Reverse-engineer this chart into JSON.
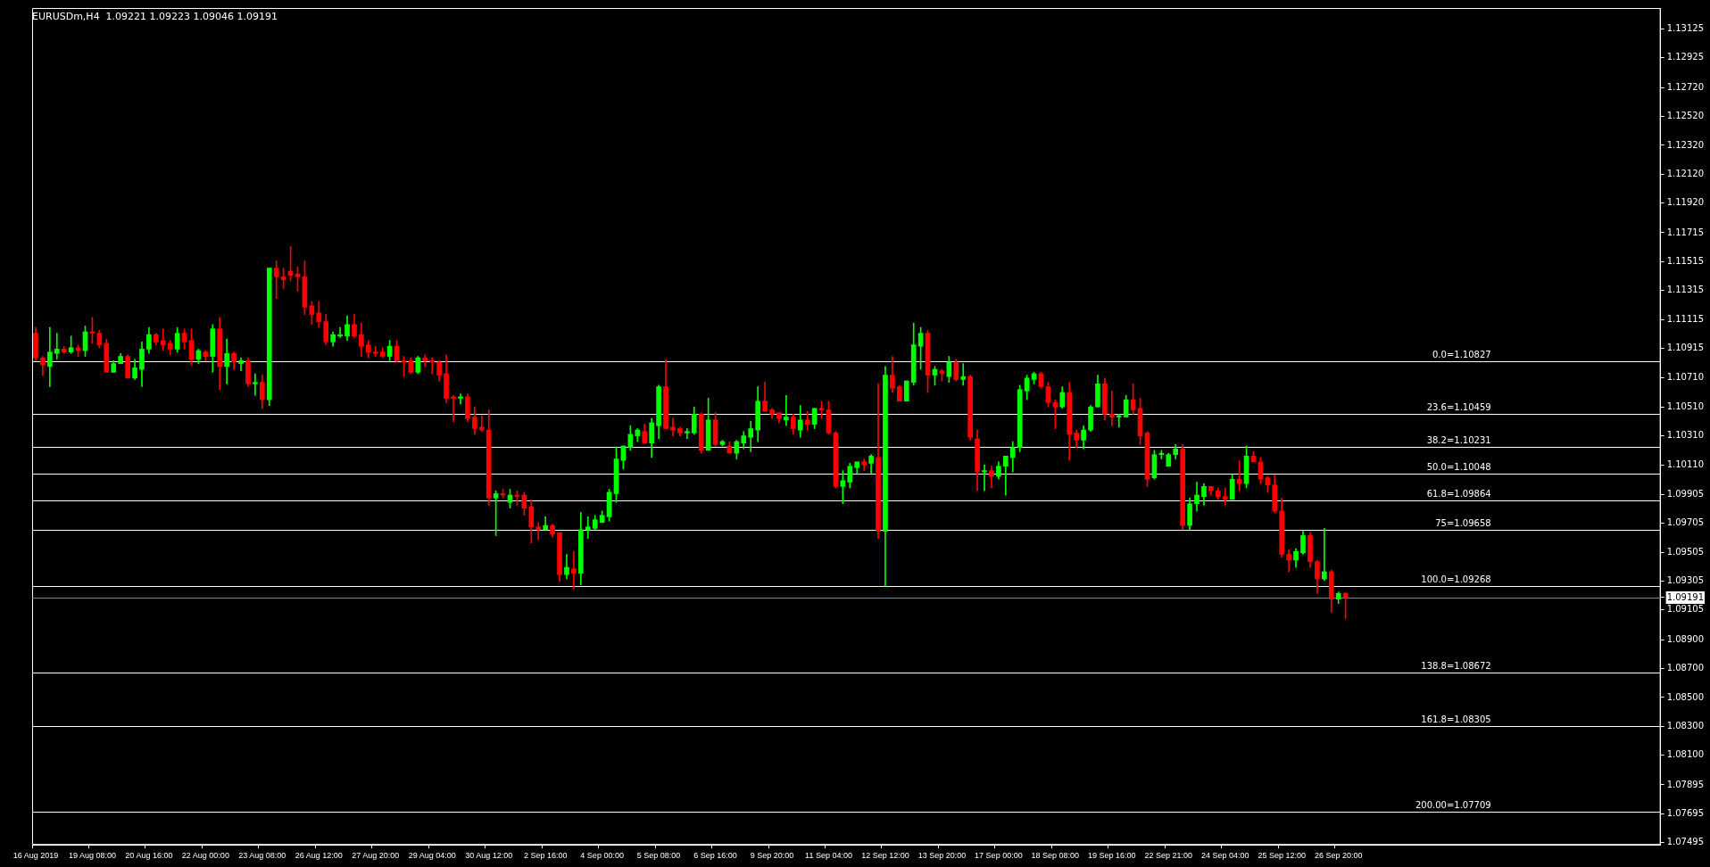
{
  "chart_data": {
    "type": "candlestick",
    "title": "EURUSDm,H4  1.09221 1.09223 1.09046 1.09191",
    "categories": [
      "16 Aug 2019",
      null,
      null,
      null,
      null,
      null,
      null,
      null,
      "19 Aug 08:00",
      null,
      null,
      null,
      null,
      null,
      null,
      null,
      "20 Aug 16:00",
      null,
      null,
      null,
      null,
      null,
      null,
      null,
      "22 Aug 00:00",
      null,
      null,
      null,
      null,
      null,
      null,
      null,
      "23 Aug 08:00",
      null,
      null,
      null,
      null,
      null,
      null,
      null,
      "26 Aug 12:00",
      null,
      null,
      null,
      null,
      null,
      null,
      null,
      "27 Aug 20:00",
      null,
      null,
      null,
      null,
      null,
      null,
      null,
      "29 Aug 04:00",
      null,
      null,
      null,
      null,
      null,
      null,
      null,
      "30 Aug 12:00",
      null,
      null,
      null,
      null,
      null,
      null,
      null,
      "2 Sep 16:00",
      null,
      null,
      null,
      null,
      null,
      null,
      null,
      "4 Sep 00:00",
      null,
      null,
      null,
      null,
      null,
      null,
      null,
      "5 Sep 08:00",
      null,
      null,
      null,
      null,
      null,
      null,
      null,
      "6 Sep 16:00",
      null,
      null,
      null,
      null,
      null,
      null,
      null,
      "9 Sep 20:00",
      null,
      null,
      null,
      null,
      null,
      null,
      null,
      "11 Sep 04:00",
      null,
      null,
      null,
      null,
      null,
      null,
      null,
      "12 Sep 12:00",
      null,
      null,
      null,
      null,
      null,
      null,
      null,
      "13 Sep 20:00",
      null,
      null,
      null,
      null,
      null,
      null,
      null,
      "17 Sep 00:00",
      null,
      null,
      null,
      null,
      null,
      null,
      null,
      "18 Sep 08:00",
      null,
      null,
      null,
      null,
      null,
      null,
      null,
      "19 Sep 16:00",
      null,
      null,
      null,
      null,
      null,
      null,
      null,
      "22 Sep 21:00",
      null,
      null,
      null,
      null,
      null,
      null,
      null,
      "24 Sep 04:00",
      null,
      null,
      null,
      null,
      null,
      null,
      null,
      "25 Sep 12:00",
      null,
      null,
      null,
      null,
      null,
      null,
      null,
      "26 Sep 20:00",
      null,
      null,
      null,
      null,
      null,
      null,
      null,
      null,
      null,
      null,
      null,
      null,
      null,
      null,
      null,
      null,
      null,
      null,
      null,
      null,
      null,
      null,
      null,
      null,
      null,
      null,
      null,
      null,
      null,
      null,
      null,
      null,
      null,
      null,
      null,
      null,
      null,
      null,
      null,
      null,
      null,
      null,
      null,
      null,
      null
    ],
    "ohlc": [
      [
        1.1102,
        1.1106,
        1.1083,
        1.1085
      ],
      [
        1.1085,
        1.1086,
        1.1073,
        1.108
      ],
      [
        1.1079,
        1.1106,
        1.1065,
        1.1089
      ],
      [
        1.1088,
        1.1102,
        1.1084,
        1.1091
      ],
      [
        1.1091,
        1.1093,
        1.1088,
        1.1089
      ],
      [
        1.1089,
        1.11,
        1.1088,
        1.1092
      ],
      [
        1.1092,
        1.1094,
        1.1086,
        1.109
      ],
      [
        1.109,
        1.1107,
        1.1086,
        1.1103
      ],
      [
        1.1103,
        1.1113,
        1.1095,
        1.1102
      ],
      [
        1.1102,
        1.1104,
        1.1092,
        1.1094
      ],
      [
        1.1095,
        1.1098,
        1.1075,
        1.1075
      ],
      [
        1.1075,
        1.1083,
        1.1075,
        1.1081
      ],
      [
        1.1081,
        1.1088,
        1.1081,
        1.1086
      ],
      [
        1.1086,
        1.1087,
        1.1071,
        1.1071
      ],
      [
        1.1071,
        1.1084,
        1.107,
        1.1078
      ],
      [
        1.1077,
        1.1096,
        1.1065,
        1.1091
      ],
      [
        1.1091,
        1.1106,
        1.1088,
        1.1101
      ],
      [
        1.1101,
        1.1102,
        1.1094,
        1.1096
      ],
      [
        1.1097,
        1.1105,
        1.109,
        1.1094
      ],
      [
        1.1095,
        1.1097,
        1.1087,
        1.1091
      ],
      [
        1.1091,
        1.1106,
        1.1089,
        1.1102
      ],
      [
        1.1102,
        1.1105,
        1.1091,
        1.1096
      ],
      [
        1.1097,
        1.1105,
        1.108,
        1.1084
      ],
      [
        1.1084,
        1.1091,
        1.1081,
        1.109
      ],
      [
        1.1089,
        1.109,
        1.1083,
        1.1086
      ],
      [
        1.1086,
        1.1108,
        1.1075,
        1.1105
      ],
      [
        1.1105,
        1.1113,
        1.1063,
        1.1079
      ],
      [
        1.1079,
        1.1098,
        1.1067,
        1.1088
      ],
      [
        1.1088,
        1.1089,
        1.1077,
        1.1082
      ],
      [
        1.1081,
        1.1085,
        1.1076,
        1.1083
      ],
      [
        1.1083,
        1.1085,
        1.1065,
        1.1067
      ],
      [
        1.1067,
        1.1074,
        1.1059,
        1.1068
      ],
      [
        1.1068,
        1.1073,
        1.105,
        1.1056
      ],
      [
        1.1056,
        1.1147,
        1.1052,
        1.1147
      ],
      [
        1.1147,
        1.1152,
        1.1126,
        1.1141
      ],
      [
        1.1141,
        1.1147,
        1.1133,
        1.1139
      ],
      [
        1.1145,
        1.1162,
        1.1138,
        1.1142
      ],
      [
        1.1143,
        1.1148,
        1.1131,
        1.1141
      ],
      [
        1.1141,
        1.1152,
        1.1115,
        1.112
      ],
      [
        1.1121,
        1.1124,
        1.1108,
        1.1115
      ],
      [
        1.1116,
        1.1124,
        1.1106,
        1.111
      ],
      [
        1.111,
        1.1115,
        1.1094,
        1.1096
      ],
      [
        1.1096,
        1.1103,
        1.1093,
        1.1101
      ],
      [
        1.11,
        1.1106,
        1.1099,
        1.1101
      ],
      [
        1.11,
        1.1114,
        1.1097,
        1.1108
      ],
      [
        1.1108,
        1.1115,
        1.1099,
        1.11
      ],
      [
        1.1101,
        1.1109,
        1.1086,
        1.1093
      ],
      [
        1.1094,
        1.1097,
        1.1085,
        1.1089
      ],
      [
        1.1089,
        1.1093,
        1.1086,
        1.1088
      ],
      [
        1.1089,
        1.1092,
        1.1085,
        1.1086
      ],
      [
        1.1086,
        1.1097,
        1.1083,
        1.1093
      ],
      [
        1.1093,
        1.1097,
        1.1082,
        1.1083
      ],
      [
        1.1083,
        1.1086,
        1.1072,
        1.1082
      ],
      [
        1.1083,
        1.1085,
        1.1074,
        1.1075
      ],
      [
        1.1075,
        1.1086,
        1.1074,
        1.1085
      ],
      [
        1.1085,
        1.1087,
        1.1079,
        1.1083
      ],
      [
        1.1083,
        1.1085,
        1.1074,
        1.1082
      ],
      [
        1.1082,
        1.1083,
        1.1069,
        1.1073
      ],
      [
        1.1074,
        1.1087,
        1.1054,
        1.1057
      ],
      [
        1.1058,
        1.1059,
        1.1041,
        1.1057
      ],
      [
        1.1057,
        1.106,
        1.1053,
        1.1058
      ],
      [
        1.1058,
        1.106,
        1.1041,
        1.1043
      ],
      [
        1.1044,
        1.1051,
        1.1032,
        1.1036
      ],
      [
        1.1037,
        1.1045,
        1.1034,
        1.1035
      ],
      [
        1.1035,
        1.1049,
        1.0983,
        1.0988
      ],
      [
        1.0988,
        1.0993,
        1.0962,
        1.0991
      ],
      [
        1.0991,
        1.0994,
        1.0988,
        1.099
      ],
      [
        1.0985,
        1.0994,
        1.0981,
        1.099
      ],
      [
        1.099,
        1.0993,
        1.0983,
        1.0989
      ],
      [
        1.099,
        1.0992,
        1.0976,
        1.0981
      ],
      [
        1.0982,
        1.0987,
        1.0957,
        1.0968
      ],
      [
        1.0968,
        1.0971,
        1.0959,
        1.0966
      ],
      [
        1.0966,
        1.0975,
        1.0966,
        1.0969
      ],
      [
        1.0969,
        1.097,
        1.0961,
        1.0963
      ],
      [
        1.0964,
        1.0964,
        1.093,
        1.0935
      ],
      [
        1.0935,
        1.0949,
        1.0932,
        1.094
      ],
      [
        1.0939,
        1.0951,
        1.0925,
        1.0936
      ],
      [
        1.0936,
        1.0978,
        1.0928,
        1.0966
      ],
      [
        1.0966,
        1.0975,
        1.096,
        1.0968
      ],
      [
        1.0967,
        1.0976,
        1.0966,
        1.0973
      ],
      [
        1.0971,
        1.0979,
        1.0971,
        1.0976
      ],
      [
        1.0975,
        1.0994,
        1.0972,
        1.0992
      ],
      [
        1.0991,
        1.1023,
        1.0985,
        1.1015
      ],
      [
        1.1014,
        1.1024,
        1.1008,
        1.1024
      ],
      [
        1.1023,
        1.1038,
        1.1021,
        1.1032
      ],
      [
        1.1031,
        1.1036,
        1.1027,
        1.1035
      ],
      [
        1.1034,
        1.1039,
        1.1026,
        1.1026
      ],
      [
        1.1026,
        1.1043,
        1.1016,
        1.104
      ],
      [
        1.1038,
        1.1066,
        1.1029,
        1.1065
      ],
      [
        1.1065,
        1.1084,
        1.1036,
        1.1036
      ],
      [
        1.1037,
        1.1043,
        1.1031,
        1.1035
      ],
      [
        1.1036,
        1.1037,
        1.1031,
        1.1033
      ],
      [
        1.1033,
        1.1036,
        1.1029,
        1.1034
      ],
      [
        1.1033,
        1.1051,
        1.1032,
        1.1046
      ],
      [
        1.1046,
        1.1047,
        1.1019,
        1.1021
      ],
      [
        1.1021,
        1.1057,
        1.1021,
        1.1042
      ],
      [
        1.1042,
        1.1047,
        1.1024,
        1.1025
      ],
      [
        1.1025,
        1.1028,
        1.1024,
        1.1027
      ],
      [
        1.1024,
        1.1027,
        1.1019,
        1.1019
      ],
      [
        1.1019,
        1.1028,
        1.1015,
        1.1027
      ],
      [
        1.1026,
        1.1034,
        1.1022,
        1.1031
      ],
      [
        1.103,
        1.1041,
        1.102,
        1.1036
      ],
      [
        1.1035,
        1.1065,
        1.1027,
        1.1055
      ],
      [
        1.1055,
        1.1068,
        1.1048,
        1.1048
      ],
      [
        1.1049,
        1.105,
        1.1043,
        1.1046
      ],
      [
        1.1047,
        1.1047,
        1.104,
        1.1043
      ],
      [
        1.1042,
        1.1059,
        1.1038,
        1.1044
      ],
      [
        1.1044,
        1.1046,
        1.1032,
        1.1036
      ],
      [
        1.1035,
        1.1052,
        1.103,
        1.1042
      ],
      [
        1.1042,
        1.1048,
        1.1035,
        1.1039
      ],
      [
        1.1039,
        1.105,
        1.1036,
        1.105
      ],
      [
        1.105,
        1.1055,
        1.1043,
        1.1049
      ],
      [
        1.1049,
        1.1055,
        1.1032,
        1.1033
      ],
      [
        1.1033,
        1.1034,
        1.0995,
        1.0996
      ],
      [
        1.0996,
        1.1007,
        1.0984,
        1.1
      ],
      [
        1.0999,
        1.1012,
        1.0995,
        1.101
      ],
      [
        1.1009,
        1.1013,
        1.1005,
        1.1013
      ],
      [
        1.1013,
        1.1015,
        1.1007,
        1.1011
      ],
      [
        1.1012,
        1.1018,
        1.1005,
        1.1017
      ],
      [
        1.1016,
        1.1067,
        1.096,
        1.0965
      ],
      [
        1.0965,
        1.1079,
        1.09268,
        1.1073
      ],
      [
        1.1073,
        1.1086,
        1.1061,
        1.1064
      ],
      [
        1.1065,
        1.1066,
        1.1055,
        1.1055
      ],
      [
        1.1055,
        1.1069,
        1.1055,
        1.1069
      ],
      [
        1.1068,
        1.1109,
        1.1066,
        1.1094
      ],
      [
        1.1093,
        1.1106,
        1.1077,
        1.1102
      ],
      [
        1.1102,
        1.1104,
        1.1061,
        1.1073
      ],
      [
        1.1073,
        1.1079,
        1.1066,
        1.1077
      ],
      [
        1.1076,
        1.1077,
        1.1069,
        1.1074
      ],
      [
        1.1072,
        1.1086,
        1.1068,
        1.1082
      ],
      [
        1.1082,
        1.1084,
        1.1069,
        1.107
      ],
      [
        1.107,
        1.1081,
        1.1066,
        1.1072
      ],
      [
        1.1072,
        1.1073,
        1.1028,
        1.103
      ],
      [
        1.1029,
        1.1035,
        1.0993,
        1.1006
      ],
      [
        1.1006,
        1.1011,
        1.0993,
        1.1007
      ],
      [
        1.1007,
        1.101,
        1.0995,
        1.1003
      ],
      [
        1.1003,
        1.1013,
        1.1001,
        1.101
      ],
      [
        1.101,
        1.1017,
        1.099,
        1.1017
      ],
      [
        1.1016,
        1.1027,
        1.1006,
        1.1023
      ],
      [
        1.1023,
        1.1066,
        1.102,
        1.1063
      ],
      [
        1.1062,
        1.1073,
        1.1056,
        1.1071
      ],
      [
        1.107,
        1.1075,
        1.1067,
        1.1074
      ],
      [
        1.1074,
        1.1075,
        1.1064,
        1.1065
      ],
      [
        1.1065,
        1.1068,
        1.1051,
        1.1054
      ],
      [
        1.1054,
        1.1056,
        1.1036,
        1.1051
      ],
      [
        1.1051,
        1.1065,
        1.105,
        1.1061
      ],
      [
        1.1061,
        1.1068,
        1.1014,
        1.1032
      ],
      [
        1.1033,
        1.1035,
        1.1023,
        1.1028
      ],
      [
        1.1028,
        1.1038,
        1.1022,
        1.1035
      ],
      [
        1.1035,
        1.1052,
        1.1034,
        1.1051
      ],
      [
        1.1051,
        1.1073,
        1.1051,
        1.1067
      ],
      [
        1.1067,
        1.1071,
        1.1042,
        1.1046
      ],
      [
        1.1046,
        1.1062,
        1.1038,
        1.1044
      ],
      [
        1.1044,
        1.1046,
        1.1037,
        1.1045
      ],
      [
        1.1044,
        1.1059,
        1.1044,
        1.1056
      ],
      [
        1.1056,
        1.1067,
        1.1046,
        1.1049
      ],
      [
        1.105,
        1.1057,
        1.1025,
        1.1031
      ],
      [
        1.1033,
        1.1034,
        1.0996,
        1.1001
      ],
      [
        1.1002,
        1.1021,
        1.1001,
        1.1018
      ],
      [
        1.1018,
        1.1021,
        1.1015,
        1.1019
      ],
      [
        1.101,
        1.1019,
        1.101,
        1.1018
      ],
      [
        1.1018,
        1.1025,
        1.1015,
        1.1022
      ],
      [
        1.1022,
        1.1025,
        1.0966,
        1.0969
      ],
      [
        1.0969,
        1.0988,
        1.0966,
        1.0984
      ],
      [
        1.0984,
        1.0999,
        1.0979,
        1.099
      ],
      [
        1.0989,
        1.0998,
        1.0983,
        1.0996
      ],
      [
        1.0996,
        1.0996,
        1.099,
        1.0993
      ],
      [
        1.0993,
        1.0995,
        1.0987,
        1.0989
      ],
      [
        1.0989,
        1.0995,
        1.0983,
        1.0987
      ],
      [
        1.0987,
        1.1004,
        1.0987,
        1.1001
      ],
      [
        1.1001,
        1.1014,
        1.0993,
        1.0998
      ],
      [
        1.0998,
        1.1024,
        1.0995,
        1.1017
      ],
      [
        1.1017,
        1.102,
        1.1013,
        1.1013
      ],
      [
        1.1013,
        1.1016,
        1.0998,
        1.1001
      ],
      [
        1.1002,
        1.1003,
        1.0992,
        1.0997
      ],
      [
        1.0997,
        1.1004,
        1.0978,
        1.0979
      ],
      [
        1.0979,
        1.0988,
        1.0947,
        1.0949
      ],
      [
        1.0949,
        1.0952,
        1.0937,
        1.0945
      ],
      [
        1.0945,
        1.0953,
        1.094,
        1.0951
      ],
      [
        1.095,
        1.0965,
        1.0949,
        1.0962
      ],
      [
        1.0962,
        1.0964,
        1.094,
        1.0944
      ],
      [
        1.0944,
        1.0945,
        1.0922,
        1.0932
      ],
      [
        1.0932,
        1.0967,
        1.0931,
        1.0937
      ],
      [
        1.0937,
        1.0938,
        1.0909,
        1.0918
      ],
      [
        1.0918,
        1.0923,
        1.0915,
        1.0922
      ],
      [
        1.09221,
        1.09223,
        1.09046,
        1.09191
      ],
      null,
      null,
      null,
      null,
      null,
      null,
      null,
      null,
      null,
      null,
      null,
      null,
      null,
      null,
      null,
      null,
      null,
      null,
      null,
      null,
      null,
      null,
      null,
      null,
      null,
      null,
      null,
      null,
      null,
      null,
      null,
      null,
      null,
      null,
      null,
      null,
      null,
      null,
      null,
      null,
      null,
      null,
      null,
      null
    ],
    "colors": [
      "#ff0000",
      "#ff0000",
      "#00ff00",
      "#00ff00",
      "#ff0000",
      "#00ff00",
      "#ff0000",
      "#00ff00",
      "#ff0000",
      "#ff0000",
      "#ff0000",
      "#00ff00",
      "#00ff00",
      "#ff0000",
      "#00ff00",
      "#00ff00",
      "#00ff00",
      "#ff0000",
      "#ff0000",
      "#ff0000",
      "#00ff00",
      "#ff0000",
      "#ff0000",
      "#00ff00",
      "#ff0000",
      "#00ff00",
      "#ff0000",
      "#00ff00",
      "#ff0000",
      "#00ff00",
      "#ff0000",
      "#00ff00",
      "#ff0000",
      "#00ff00",
      "#ff0000",
      "#ff0000",
      "#ff0000",
      "#ff0000",
      "#ff0000",
      "#ff0000",
      "#ff0000",
      "#ff0000",
      "#00ff00",
      "#00ff00",
      "#00ff00",
      "#ff0000",
      "#ff0000",
      "#ff0000",
      "#ff0000",
      "#ff0000",
      "#00ff00",
      "#ff0000",
      "#ff0000",
      "#ff0000",
      "#00ff00",
      "#ff0000",
      "#ff0000",
      "#ff0000",
      "#ff0000",
      "#ff0000",
      "#00ff00",
      "#ff0000",
      "#ff0000",
      "#ff0000",
      "#ff0000",
      "#00ff00",
      "#ff0000",
      "#00ff00",
      "#ff0000",
      "#ff0000",
      "#ff0000",
      "#ff0000",
      "#00ff00",
      "#ff0000",
      "#ff0000",
      "#00ff00",
      "#ff0000",
      "#00ff00",
      "#00ff00",
      "#00ff00",
      "#00ff00",
      "#00ff00",
      "#00ff00",
      "#00ff00",
      "#00ff00",
      "#00ff00",
      "#ff0000",
      "#00ff00",
      "#00ff00",
      "#ff0000",
      "#ff0000",
      "#ff0000",
      "#00ff00",
      "#00ff00",
      "#ff0000",
      "#00ff00",
      "#ff0000",
      "#00ff00",
      "#ff0000",
      "#00ff00",
      "#00ff00",
      "#00ff00",
      "#00ff00",
      "#ff0000",
      "#ff0000",
      "#ff0000",
      "#00ff00",
      "#ff0000",
      "#00ff00",
      "#ff0000",
      "#00ff00",
      "#ff0000",
      "#ff0000",
      "#ff0000",
      "#00ff00",
      "#00ff00",
      "#00ff00",
      "#ff0000",
      "#00ff00",
      "#ff0000",
      "#00ff00",
      "#ff0000",
      "#ff0000",
      "#00ff00",
      "#00ff00",
      "#00ff00",
      "#ff0000",
      "#00ff00",
      "#ff0000",
      "#00ff00",
      "#ff0000",
      "#00ff00",
      "#ff0000",
      "#ff0000",
      "#00ff00",
      "#ff0000",
      "#00ff00",
      "#00ff00",
      "#00ff00",
      "#00ff00",
      "#00ff00",
      "#00ff00",
      "#ff0000",
      "#ff0000",
      "#ff0000",
      "#00ff00",
      "#ff0000",
      "#ff0000",
      "#00ff00",
      "#00ff00",
      "#00ff00",
      "#ff0000",
      "#ff0000",
      "#00ff00",
      "#00ff00",
      "#ff0000",
      "#ff0000",
      "#ff0000",
      "#00ff00",
      "#00ff00",
      "#00ff00",
      "#00ff00",
      "#ff0000",
      "#00ff00",
      "#00ff00",
      "#00ff00",
      "#ff0000",
      "#ff0000",
      "#ff0000",
      "#00ff00",
      "#ff0000",
      "#00ff00",
      "#ff0000",
      "#ff0000",
      "#ff0000",
      "#ff0000",
      "#ff0000",
      "#ff0000",
      "#00ff00",
      "#00ff00",
      "#ff0000",
      "#ff0000",
      "#00ff00",
      "#ff0000",
      "#00ff00",
      "#ff0000",
      null,
      null,
      null,
      null,
      null,
      null,
      null,
      null,
      null,
      null,
      null,
      null,
      null,
      null,
      null,
      null,
      null,
      null,
      null,
      null,
      null,
      null,
      null,
      null,
      null,
      null,
      null,
      null,
      null,
      null,
      null,
      null,
      null,
      null,
      null,
      null,
      null,
      null,
      null,
      null,
      null,
      null,
      null,
      null
    ],
    "ylim": [
      1.0748,
      1.1327
    ],
    "yticks": [
      1.07495,
      1.07695,
      1.07895,
      {
        "value": 1.081,
        "label": "1.08100"
      },
      {
        "value": 1.083,
        "label": "1.08300"
      },
      {
        "value": 1.085,
        "label": "1.08500"
      },
      {
        "value": 1.087,
        "label": "1.08700"
      },
      {
        "value": 1.089,
        "label": "1.08900"
      },
      1.09105,
      1.09191,
      1.09305,
      1.09505,
      1.09705,
      1.09905,
      {
        "value": 1.1011,
        "label": "1.10110"
      },
      {
        "value": 1.1031,
        "label": "1.10310"
      },
      {
        "value": 1.1051,
        "label": "1.10510"
      },
      {
        "value": 1.1071,
        "label": "1.10710"
      },
      1.10915,
      1.11115,
      1.11315,
      1.11515,
      1.11715,
      {
        "value": 1.1192,
        "label": "1.11920"
      },
      {
        "value": 1.1212,
        "label": "1.12120"
      },
      {
        "value": 1.1232,
        "label": "1.12320"
      },
      {
        "value": 1.1252,
        "label": "1.12520"
      },
      {
        "value": 1.1272,
        "label": "1.12720"
      },
      1.12925,
      1.13125
    ],
    "ref_lines": [
      {
        "axis": "y",
        "value": 1.10827,
        "label": "0.0=1.10827",
        "color": "#ffffff"
      },
      {
        "axis": "y",
        "value": 1.10459,
        "label": "23.6=1.10459",
        "color": "#ffffff"
      },
      {
        "axis": "y",
        "value": 1.10231,
        "label": "38.2=1.10231",
        "color": "#ffffff"
      },
      {
        "axis": "y",
        "value": 1.10048,
        "label": "50.0=1.10048",
        "color": "#ffffff"
      },
      {
        "axis": "y",
        "value": 1.09864,
        "label": "61.8=1.09864",
        "color": "#ffffff"
      },
      {
        "axis": "y",
        "value": 1.09658,
        "label": "75=1.09658",
        "color": "#ffffff"
      },
      {
        "axis": "y",
        "value": 1.09268,
        "label": "100.0=1.09268",
        "color": "#ffffff"
      },
      {
        "axis": "y",
        "value": 1.08672,
        "label": "138.8=1.08672",
        "color": "#ffffff"
      },
      {
        "axis": "y",
        "value": 1.08305,
        "label": "161.8=1.08305",
        "color": "#ffffff"
      },
      {
        "axis": "y",
        "value": 1.07709,
        "label": "200.00=1.07709",
        "color": "#ffffff"
      },
      {
        "axis": "y",
        "value": 1.09191,
        "color": "#778899"
      }
    ]
  }
}
